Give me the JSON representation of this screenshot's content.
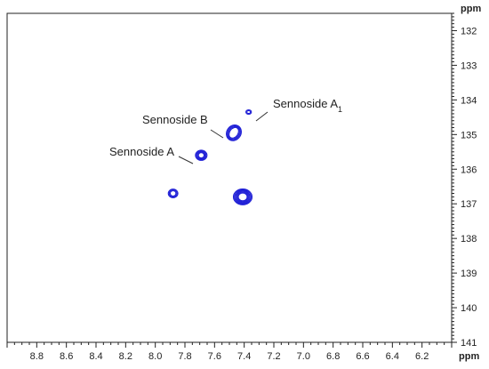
{
  "chart_data": {
    "type": "contour",
    "x": {
      "label": "ppm",
      "range": [
        9.0,
        6.0
      ],
      "reversed": true,
      "ticks": [
        "8.8",
        "8.6",
        "8.4",
        "8.2",
        "8.0",
        "7.8",
        "7.6",
        "7.4",
        "7.2",
        "7.0",
        "6.8",
        "6.6",
        "6.4",
        "6.2"
      ]
    },
    "y": {
      "label": "ppm",
      "range": [
        131.5,
        141.0
      ],
      "reversed": true,
      "ticks": [
        "132",
        "133",
        "134",
        "135",
        "136",
        "137",
        "138",
        "139",
        "140",
        "141"
      ]
    },
    "peaks": [
      {
        "x": 7.88,
        "y": 136.7,
        "rings": 3,
        "intensity": "medium"
      },
      {
        "x": 7.69,
        "y": 135.6,
        "rings": 4,
        "intensity": "medium"
      },
      {
        "x": 7.47,
        "y": 134.95,
        "rings": 4,
        "intensity": "medium",
        "shape": "elongated"
      },
      {
        "x": 7.37,
        "y": 134.35,
        "rings": 2,
        "intensity": "weak"
      },
      {
        "x": 7.41,
        "y": 136.8,
        "rings": 6,
        "intensity": "strong"
      }
    ],
    "annotations": [
      {
        "text": "Sennoside A",
        "sub": "",
        "peak": 1
      },
      {
        "text": "Sennoside B",
        "sub": "",
        "peak": 2
      },
      {
        "text": "Sennoside A",
        "sub": "1",
        "peak": 3
      }
    ],
    "grid": false,
    "colors": {
      "contour": "#1f1fd6",
      "axis": "#222222",
      "leader": "#333333"
    }
  }
}
